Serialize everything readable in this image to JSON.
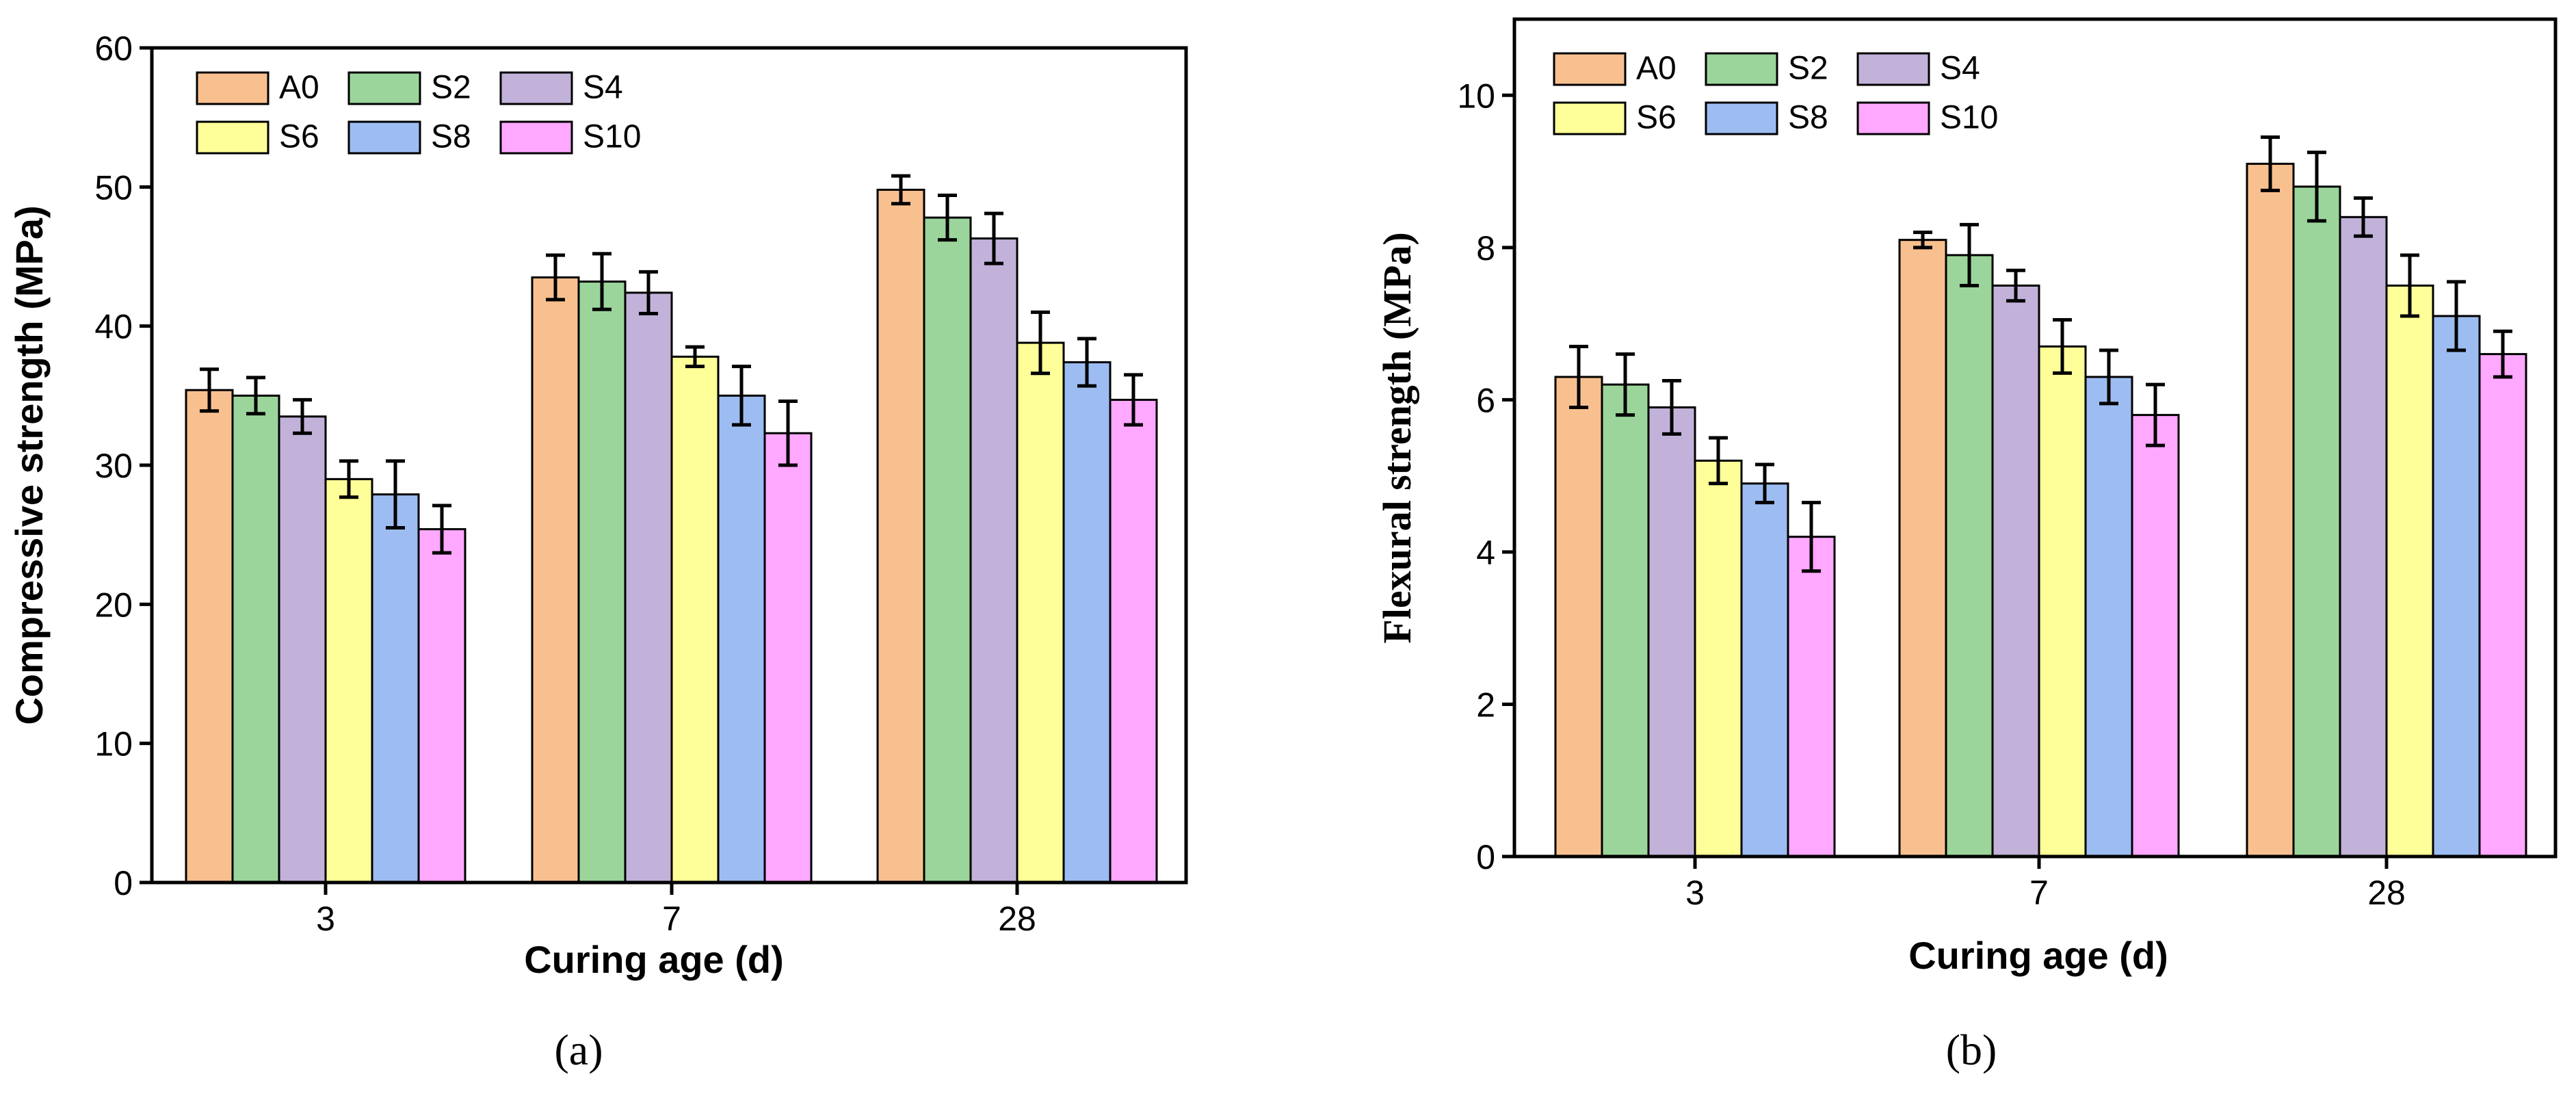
{
  "chart_data": [
    {
      "type": "bar",
      "panel_label": "(a)",
      "title": "",
      "xlabel": "Curing age (d)",
      "ylabel": "Compressive strength (MPa)",
      "categories": [
        "3",
        "7",
        "28"
      ],
      "ylim": [
        0,
        60
      ],
      "yticks": [
        0,
        10,
        20,
        30,
        40,
        50,
        60
      ],
      "ytick_labels": [
        "0",
        "10",
        "20",
        "30",
        "40",
        "50",
        "60"
      ],
      "grid": false,
      "legend_position": "top-left",
      "series": [
        {
          "name": "A0",
          "color": "#F9C08F",
          "values": [
            35.4,
            43.5,
            49.8
          ],
          "errors": [
            1.5,
            1.6,
            1.0
          ]
        },
        {
          "name": "S2",
          "color": "#9BD59B",
          "values": [
            35.0,
            43.2,
            47.8
          ],
          "errors": [
            1.3,
            2.0,
            1.6
          ]
        },
        {
          "name": "S4",
          "color": "#C2B2D9",
          "values": [
            33.5,
            42.4,
            46.3
          ],
          "errors": [
            1.2,
            1.5,
            1.8
          ]
        },
        {
          "name": "S6",
          "color": "#FFFF99",
          "values": [
            29.0,
            37.8,
            38.8
          ],
          "errors": [
            1.3,
            0.7,
            2.2
          ]
        },
        {
          "name": "S8",
          "color": "#9DBDF2",
          "values": [
            27.9,
            35.0,
            37.4
          ],
          "errors": [
            2.4,
            2.1,
            1.7
          ]
        },
        {
          "name": "S10",
          "color": "#FFA8FF",
          "values": [
            25.4,
            32.3,
            34.7
          ],
          "errors": [
            1.7,
            2.3,
            1.8
          ]
        }
      ]
    },
    {
      "type": "bar",
      "panel_label": "(b)",
      "title": "",
      "xlabel": "Curing age (d)",
      "ylabel": "Flexural strength (MPa)",
      "categories": [
        "3",
        "7",
        "28"
      ],
      "ylim": [
        0,
        11
      ],
      "yticks": [
        0,
        2,
        4,
        6,
        8,
        10
      ],
      "ytick_labels": [
        "0",
        "2",
        "4",
        "6",
        "8",
        "10"
      ],
      "grid": false,
      "legend_position": "top-left",
      "series": [
        {
          "name": "A0",
          "color": "#F9C08F",
          "values": [
            6.3,
            8.1,
            9.1
          ],
          "errors": [
            0.4,
            0.1,
            0.35
          ]
        },
        {
          "name": "S2",
          "color": "#9BD59B",
          "values": [
            6.2,
            7.9,
            8.8
          ],
          "errors": [
            0.4,
            0.4,
            0.45
          ]
        },
        {
          "name": "S4",
          "color": "#C2B2D9",
          "values": [
            5.9,
            7.5,
            8.4
          ],
          "errors": [
            0.35,
            0.2,
            0.25
          ]
        },
        {
          "name": "S6",
          "color": "#FFFF99",
          "values": [
            5.2,
            6.7,
            7.5
          ],
          "errors": [
            0.3,
            0.35,
            0.4
          ]
        },
        {
          "name": "S8",
          "color": "#9DBDF2",
          "values": [
            4.9,
            6.3,
            7.1
          ],
          "errors": [
            0.25,
            0.35,
            0.45
          ]
        },
        {
          "name": "S10",
          "color": "#FFA8FF",
          "values": [
            4.2,
            5.8,
            6.6
          ],
          "errors": [
            0.45,
            0.4,
            0.3
          ]
        }
      ]
    }
  ]
}
